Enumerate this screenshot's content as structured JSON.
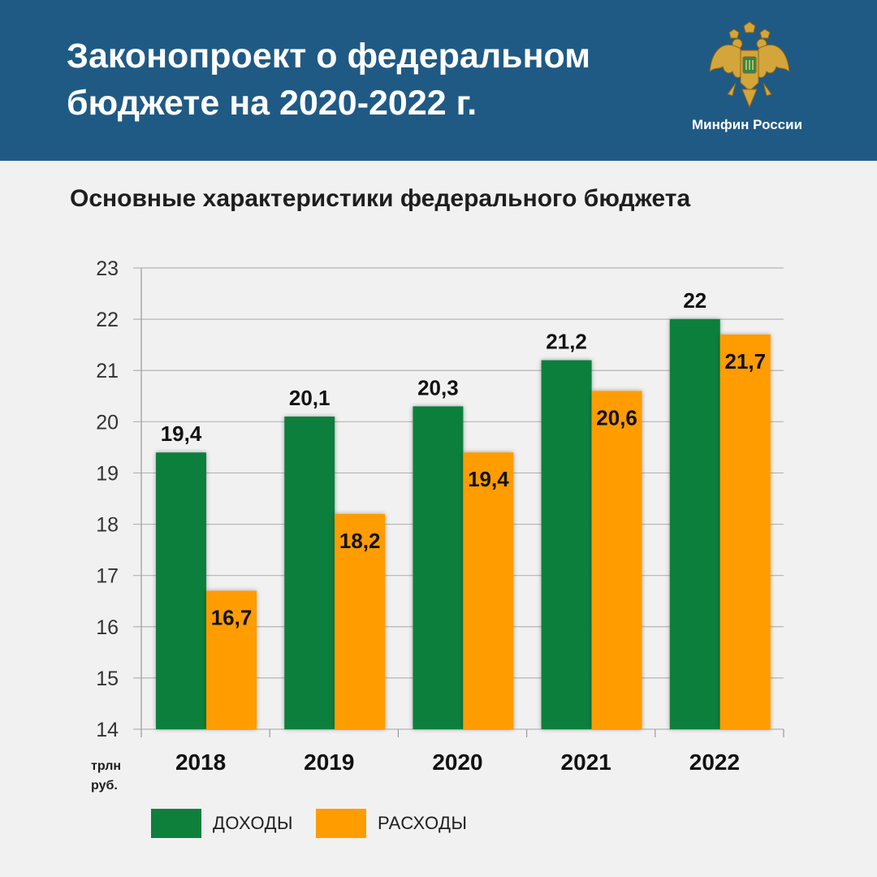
{
  "header": {
    "title": "Законопроект о федеральном бюджете на 2020-2022 г.",
    "org": "Минфин России",
    "emblem_icon": "double-headed-eagle-emblem",
    "background": "#1f5a85"
  },
  "unit_label": "трлн\nруб.",
  "legend": [
    {
      "label": "ДОХОДЫ",
      "color": "#0f7f3c"
    },
    {
      "label": "РАСХОДЫ",
      "color": "#ff9c00"
    }
  ],
  "chart_data": {
    "type": "bar",
    "title": "Основные характеристики федерального бюджета",
    "categories": [
      "2018",
      "2019",
      "2020",
      "2021",
      "2022"
    ],
    "series": [
      {
        "name": "ДОХОДЫ",
        "color": "#0f7f3c",
        "values": [
          19.4,
          20.1,
          20.3,
          21.2,
          22
        ],
        "labels": [
          "19,4",
          "20,1",
          "20,3",
          "21,2",
          "22"
        ]
      },
      {
        "name": "РАСХОДЫ",
        "color": "#ff9c00",
        "values": [
          16.7,
          18.2,
          19.4,
          20.6,
          21.7
        ],
        "labels": [
          "16,7",
          "18,2",
          "19,4",
          "20,6",
          "21,7"
        ]
      }
    ],
    "ylim": [
      14,
      23
    ],
    "yticks": [
      14,
      15,
      16,
      17,
      18,
      19,
      20,
      21,
      22,
      23
    ],
    "grid": true,
    "legend_position": "bottom"
  }
}
